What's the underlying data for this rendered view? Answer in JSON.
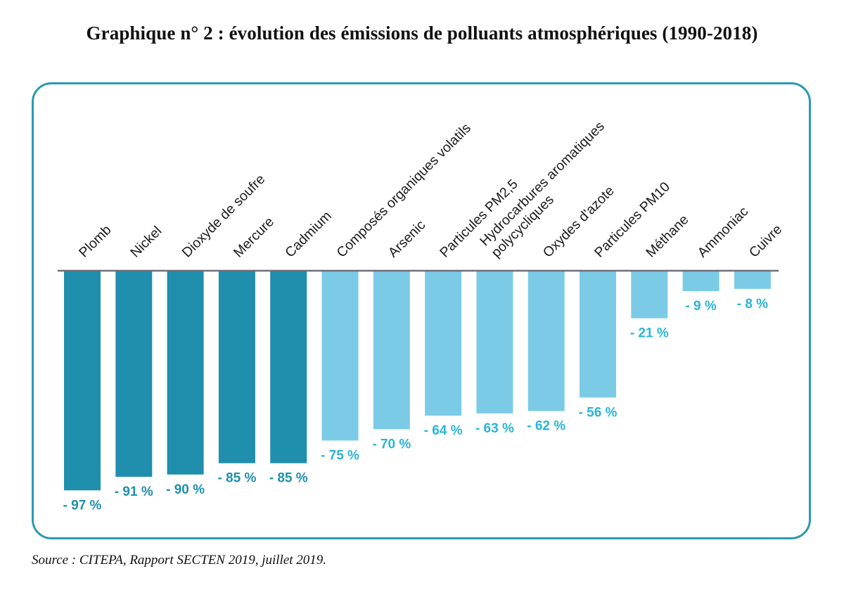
{
  "title": "Graphique n° 2 : évolution des émissions de polluants atmosphériques (1990-2018)",
  "source": "Source : CITEPA, Rapport SECTEN 2019, juillet 2019.",
  "colors": {
    "dark_bar": "#1f8fad",
    "light_bar": "#7ccbe6",
    "label_dark": "#1f8fad",
    "label_light": "#29b5d8",
    "axis": "#6e6e78",
    "frame": "#2a9ab3"
  },
  "chart_data": {
    "type": "bar",
    "title": "Graphique n° 2 : évolution des émissions de polluants atmosphériques (1990-2018)",
    "xlabel": "",
    "ylabel": "",
    "ylim": [
      -100,
      0
    ],
    "categories": [
      [
        "Plomb"
      ],
      [
        "Nickel"
      ],
      [
        "Dioxyde de soufre"
      ],
      [
        "Mercure"
      ],
      [
        "Cadmium"
      ],
      [
        "Composés organiques volatils"
      ],
      [
        "Arsenic"
      ],
      [
        "Particules PM2,5"
      ],
      [
        "Hydrocarbures aromatiques",
        "polycycliques"
      ],
      [
        "Oxydes d'azote"
      ],
      [
        "Particules PM10"
      ],
      [
        "Méthane"
      ],
      [
        "Ammoniac"
      ],
      [
        "Cuivre"
      ]
    ],
    "values": [
      -97,
      -91,
      -90,
      -85,
      -85,
      -75,
      -70,
      -64,
      -63,
      -62,
      -56,
      -21,
      -9,
      -8
    ],
    "value_labels": [
      "- 97 %",
      "- 91 %",
      "- 90 %",
      "- 85 %",
      "- 85 %",
      "- 75 %",
      "- 70 %",
      "- 64 %",
      "- 63 %",
      "- 62 %",
      "- 56 %",
      "- 21 %",
      "- 9 %",
      "- 8 %"
    ],
    "shade": [
      "dark",
      "dark",
      "dark",
      "dark",
      "dark",
      "light",
      "light",
      "light",
      "light",
      "light",
      "light",
      "light",
      "light",
      "light"
    ]
  }
}
